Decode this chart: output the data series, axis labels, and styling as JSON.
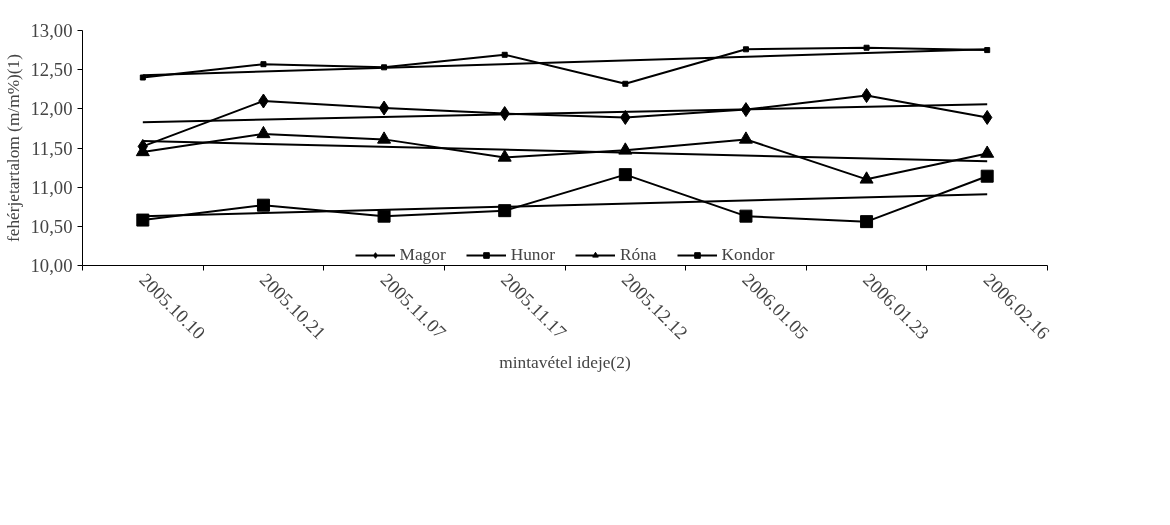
{
  "chart_data": {
    "type": "line",
    "xlabel": "mintavétel ideje(2)",
    "ylabel": "fehérjetartalom (m/m%)(1)",
    "categories": [
      "2005.10.10",
      "2005.10.21",
      "2005.11.07",
      "2005.11.17",
      "2005.12.12",
      "2006.01.05",
      "2006.01.23",
      "2006.02.16"
    ],
    "ylim": [
      10,
      13
    ],
    "yticks": [
      {
        "value": 10,
        "label": "10,00"
      },
      {
        "value": 10.5,
        "label": "10,50"
      },
      {
        "value": 11,
        "label": "11,00"
      },
      {
        "value": 11.5,
        "label": "11,50"
      },
      {
        "value": 12,
        "label": "12,00"
      },
      {
        "value": 12.5,
        "label": "12,50"
      },
      {
        "value": 13,
        "label": "13,00"
      }
    ],
    "grid": false,
    "legend": "bottom",
    "series": [
      {
        "name": "Magor",
        "color": "#000000",
        "marker": "diamond",
        "values": [
          11.52,
          12.1,
          12.01,
          11.94,
          11.89,
          11.99,
          12.17,
          11.89
        ]
      },
      {
        "name": "Hunor",
        "color": "#000000",
        "marker": "square",
        "values": [
          10.58,
          10.77,
          10.63,
          10.7,
          11.16,
          10.63,
          10.56,
          11.14
        ]
      },
      {
        "name": "Róna",
        "color": "#000000",
        "marker": "triangle",
        "values": [
          11.45,
          11.68,
          11.61,
          11.38,
          11.47,
          11.61,
          11.1,
          11.43
        ]
      },
      {
        "name": "Kondor",
        "color": "#000000",
        "marker": "square",
        "values": [
          12.4,
          12.57,
          12.53,
          12.69,
          12.32,
          12.76,
          12.78,
          12.75
        ]
      },
      {
        "color": "#000000",
        "marker": "none",
        "x": [
          "2005.10.10",
          "2006.02.16"
        ],
        "values": [
          11.83,
          12.06
        ]
      },
      {
        "color": "#000000",
        "marker": "none",
        "x": [
          "2005.10.10",
          "2006.02.16"
        ],
        "values": [
          10.63,
          10.91
        ]
      },
      {
        "color": "#000000",
        "marker": "none",
        "x": [
          "2005.10.10",
          "2006.02.16"
        ],
        "values": [
          11.59,
          11.33
        ]
      },
      {
        "color": "#000000",
        "marker": "none",
        "x": [
          "2005.10.10",
          "2006.02.16"
        ],
        "values": [
          12.43,
          12.76
        ]
      }
    ]
  }
}
